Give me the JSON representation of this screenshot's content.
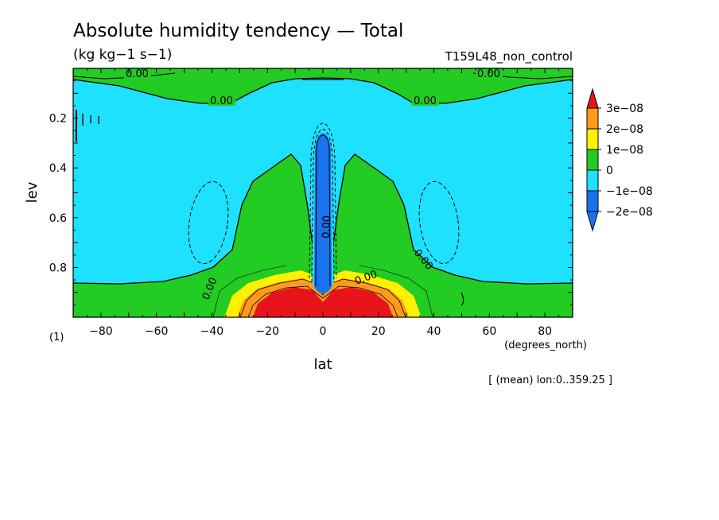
{
  "chart_data": {
    "type": "heatmap",
    "title": "Absolute humidity tendency — Total",
    "units": "(kg kg−1 s−1)",
    "experiment": "T159L48_non_control",
    "xlabel": "lat",
    "xunits": "(degrees_north)",
    "ylabel": "lev",
    "yunits": "(1)",
    "xlim": [
      -90,
      90
    ],
    "ylim": [
      0,
      1
    ],
    "y_inverted": true,
    "xticks": [
      -80,
      -60,
      -40,
      -20,
      0,
      20,
      40,
      60,
      80
    ],
    "yticks": [
      0.2,
      0.4,
      0.6,
      0.8
    ],
    "note": "[ (mean) lon:0..359.25 ]",
    "colorbar": {
      "labels": [
        "3e−08",
        "2e−08",
        "1e−08",
        "0",
        "−1e−08",
        "−2e−08"
      ],
      "colors": [
        "#e8141c",
        "#ff9a1a",
        "#fff200",
        "#22cc22",
        "#1ee0ff",
        "#1a73ee",
        "#1a73ee"
      ]
    },
    "contour_labels": [
      "0.00",
      "0.00",
      "0.00",
      "0.00",
      "0.00",
      "0.00",
      "0.00",
      "0.00"
    ]
  }
}
